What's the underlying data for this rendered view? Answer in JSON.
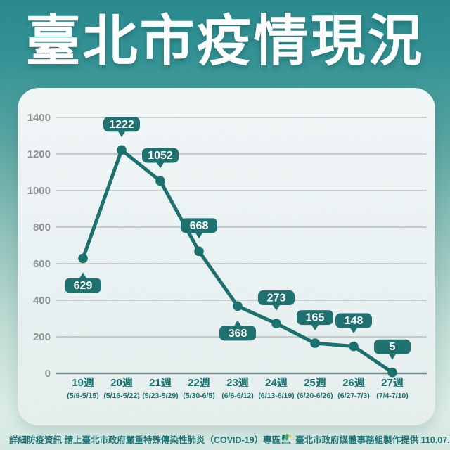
{
  "title": "臺北市疫情現況",
  "footer": {
    "info": "詳細防疫資訊 請上臺北市政府嚴重特殊傳染性肺炎（COVID-19）專區",
    "credit": "臺北市政府媒體事務組製作提供 110.07.07",
    "logo_text": "TAIPEI"
  },
  "colors": {
    "background_top": "#26898c",
    "background_bottom": "#d5e9e2",
    "card": "#ecf4f5",
    "teal": "#166f6d",
    "bubble_fill": "#1b706e",
    "bubble_text": "#ffffff",
    "axis_text": "#8b9191",
    "gridline": "#b0b5b5",
    "zero_line": "#6e8888",
    "week_text": "#11716f",
    "footer_text": "#197170"
  },
  "chart_data": {
    "type": "line",
    "title": "臺北市疫情現況",
    "xlabel": "",
    "ylabel": "",
    "categories": [
      "19週",
      "20週",
      "21週",
      "22週",
      "23週",
      "24週",
      "25週",
      "26週",
      "27週"
    ],
    "category_dates": [
      "(5/9-5/15)",
      "(5/16-5/22)",
      "(5/23-5/29)",
      "(5/30-6/5)",
      "(6/6-6/12)",
      "(6/13-6/19)",
      "(6/20-6/26)",
      "(6/27-7/3)",
      "(7/4-7/10)"
    ],
    "values": [
      629,
      1222,
      1052,
      668,
      368,
      273,
      165,
      148,
      5
    ],
    "label_positions": [
      "below",
      "above",
      "above",
      "above",
      "below",
      "above",
      "above",
      "above",
      "above"
    ],
    "y_ticks": [
      0,
      200,
      400,
      600,
      800,
      1000,
      1200,
      1400
    ],
    "ylim": [
      0,
      1400
    ],
    "grid": true,
    "legend": false
  }
}
